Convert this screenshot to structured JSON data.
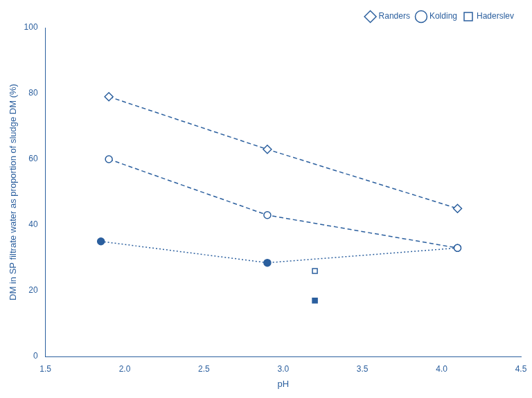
{
  "chart_data": {
    "type": "line",
    "xlabel": "pH",
    "ylabel": "DM in SP filtrate water as proportion of sludge DM (%)",
    "color": "#2B5F9E",
    "xlim": [
      1.5,
      4.5
    ],
    "ylim": [
      0,
      100
    ],
    "xticks": [
      1.5,
      {
        "value": 2,
        "label": "2.0"
      },
      2.5,
      {
        "value": 3,
        "label": "3.0"
      },
      3.5,
      {
        "value": 4,
        "label": "4.0"
      },
      4.5
    ],
    "yticks": [
      0,
      20,
      40,
      60,
      80,
      100
    ],
    "grid": false,
    "legend": "upper right",
    "series": [
      {
        "name": "Randers",
        "x": [
          1.9,
          2.9,
          4.1
        ],
        "values": [
          79,
          63,
          45
        ],
        "marker": "open_diamond",
        "line_style": "dashed"
      },
      {
        "name": "Kolding",
        "x": [
          1.9,
          2.9,
          4.1
        ],
        "values": [
          60,
          43,
          33
        ],
        "marker": "open_circle",
        "line_style": "dashed"
      },
      {
        "x": [
          1.85,
          2.9,
          4.1
        ],
        "values": [
          35,
          28.5,
          33
        ],
        "marker": "filled_circle",
        "line_style": "dotted"
      },
      {
        "name": "Haderslev",
        "x": [
          3.2
        ],
        "values": [
          26
        ],
        "marker": "open_square",
        "line_style": "none"
      },
      {
        "x": [
          3.2
        ],
        "values": [
          17
        ],
        "marker": "filled_square",
        "line_style": "none"
      }
    ]
  }
}
